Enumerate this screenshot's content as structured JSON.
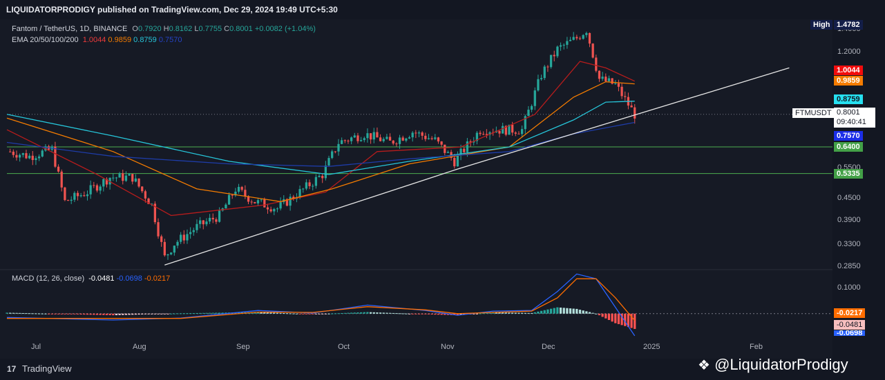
{
  "header": {
    "publisher": "LIQUIDATORPRODIGY published on TradingView.com, Dec 29, 2024 19:49 UTC+5:30"
  },
  "legend": {
    "symbol": "Fantom / TetherUS, 1D, BINANCE",
    "o_label": "O",
    "o_value": "0.7920",
    "h_label": "H",
    "h_value": "0.8162",
    "l_label": "L",
    "l_value": "0.7755",
    "c_label": "C",
    "c_value": "0.8001",
    "change": "+0.0082 (+1.04%)",
    "ema_label": "EMA 20/50/100/200",
    "ema20": "1.0044",
    "ema50": "0.9859",
    "ema100": "0.8759",
    "ema200": "0.7570",
    "macd_label": "MACD (12, 26, close)",
    "macd_hist": "-0.0481",
    "macd_line": "-0.0698",
    "macd_signal": "-0.0217"
  },
  "price_tags": {
    "high_label": "High",
    "high_value": "1.4782",
    "ema20": "1.0044",
    "ema50": "0.9859",
    "ema100": "0.8759",
    "ticker": "FTMUSDT",
    "last": "0.8001",
    "countdown": "09:40:41",
    "ema200": "0.7570",
    "level1": "0.6400",
    "level2": "0.5335",
    "macd_signal": "-0.0217",
    "macd_hist": "-0.0481",
    "macd_line": "-0.0698"
  },
  "axis": {
    "price_ticks": [
      "1.4000",
      "1.2000",
      "0.5500",
      "0.4500",
      "0.3900",
      "0.3300",
      "0.2850"
    ],
    "macd_ticks": [
      "0.1000"
    ],
    "time_labels": [
      "Jul",
      "Aug",
      "Sep",
      "Oct",
      "Nov",
      "Dec",
      "2025",
      "Feb"
    ]
  },
  "footer": {
    "brand": "TradingView",
    "logo": "17",
    "watermark": "@LiquidatorProdigy"
  },
  "colors": {
    "up": "#26a69a",
    "down": "#ef5350",
    "ema20": "#b71c1c",
    "ema50": "#f57c00",
    "ema100": "#26c6da",
    "ema200": "#1e3ca8",
    "level": "#4caf50",
    "macd": "#2962ff",
    "signal": "#ff6d00"
  },
  "chart_data": [
    {
      "type": "line",
      "title": "Fantom / TetherUS, 1D, BINANCE",
      "x_range": [
        "2024-06-17",
        "2025-02-28"
      ],
      "y_scale": "log",
      "ylim": [
        0.28,
        1.52
      ],
      "candles_approx": [
        {
          "date": "2024-06-18",
          "close": 0.62
        },
        {
          "date": "2024-06-24",
          "close": 0.6
        },
        {
          "date": "2024-07-01",
          "close": 0.63
        },
        {
          "date": "2024-07-05",
          "close": 0.44
        },
        {
          "date": "2024-07-12",
          "close": 0.47
        },
        {
          "date": "2024-07-19",
          "close": 0.52
        },
        {
          "date": "2024-07-26",
          "close": 0.52
        },
        {
          "date": "2024-08-01",
          "close": 0.43
        },
        {
          "date": "2024-08-05",
          "close": 0.3
        },
        {
          "date": "2024-08-08",
          "close": 0.33
        },
        {
          "date": "2024-08-15",
          "close": 0.37
        },
        {
          "date": "2024-08-22",
          "close": 0.4
        },
        {
          "date": "2024-08-27",
          "close": 0.48
        },
        {
          "date": "2024-09-02",
          "close": 0.44
        },
        {
          "date": "2024-09-09",
          "close": 0.42
        },
        {
          "date": "2024-09-16",
          "close": 0.47
        },
        {
          "date": "2024-09-23",
          "close": 0.53
        },
        {
          "date": "2024-09-28",
          "close": 0.66
        },
        {
          "date": "2024-10-06",
          "close": 0.7
        },
        {
          "date": "2024-10-14",
          "close": 0.66
        },
        {
          "date": "2024-10-21",
          "close": 0.71
        },
        {
          "date": "2024-10-28",
          "close": 0.67
        },
        {
          "date": "2024-11-03",
          "close": 0.58
        },
        {
          "date": "2024-11-11",
          "close": 0.72
        },
        {
          "date": "2024-11-17",
          "close": 0.72
        },
        {
          "date": "2024-11-24",
          "close": 0.72
        },
        {
          "date": "2024-11-30",
          "close": 1.05
        },
        {
          "date": "2024-12-05",
          "close": 1.25
        },
        {
          "date": "2024-12-11",
          "close": 1.35
        },
        {
          "date": "2024-12-14",
          "close": 1.43
        },
        {
          "date": "2024-12-18",
          "close": 1.02
        },
        {
          "date": "2024-12-23",
          "close": 0.98
        },
        {
          "date": "2024-12-29",
          "close": 0.8001
        }
      ],
      "series": [
        {
          "name": "EMA 20",
          "color": "#b71c1c",
          "points": [
            [
              "2024-06-17",
              0.72
            ],
            [
              "2024-07-15",
              0.53
            ],
            [
              "2024-08-07",
              0.4
            ],
            [
              "2024-09-05",
              0.43
            ],
            [
              "2024-09-24",
              0.47
            ],
            [
              "2024-10-10",
              0.62
            ],
            [
              "2024-11-05",
              0.64
            ],
            [
              "2024-11-28",
              0.8
            ],
            [
              "2024-12-12",
              1.15
            ],
            [
              "2024-12-20",
              1.1
            ],
            [
              "2024-12-29",
              1.0044
            ]
          ]
        },
        {
          "name": "EMA 50",
          "color": "#f57c00",
          "points": [
            [
              "2024-06-17",
              0.78
            ],
            [
              "2024-07-20",
              0.62
            ],
            [
              "2024-08-15",
              0.48
            ],
            [
              "2024-09-10",
              0.44
            ],
            [
              "2024-09-26",
              0.48
            ],
            [
              "2024-10-20",
              0.57
            ],
            [
              "2024-11-20",
              0.64
            ],
            [
              "2024-12-10",
              0.9
            ],
            [
              "2024-12-20",
              1.0
            ],
            [
              "2024-12-29",
              0.9859
            ]
          ]
        },
        {
          "name": "EMA 100",
          "color": "#26c6da",
          "points": [
            [
              "2024-06-17",
              0.8
            ],
            [
              "2024-07-20",
              0.69
            ],
            [
              "2024-08-25",
              0.58
            ],
            [
              "2024-09-25",
              0.53
            ],
            [
              "2024-10-20",
              0.58
            ],
            [
              "2024-11-20",
              0.64
            ],
            [
              "2024-12-10",
              0.77
            ],
            [
              "2024-12-20",
              0.87
            ],
            [
              "2024-12-29",
              0.8759
            ]
          ]
        },
        {
          "name": "EMA 200",
          "color": "#1e3ca8",
          "points": [
            [
              "2024-06-17",
              0.66
            ],
            [
              "2024-07-20",
              0.6
            ],
            [
              "2024-08-25",
              0.57
            ],
            [
              "2024-09-25",
              0.56
            ],
            [
              "2024-10-20",
              0.59
            ],
            [
              "2024-11-20",
              0.62
            ],
            [
              "2024-12-10",
              0.7
            ],
            [
              "2024-12-29",
              0.757
            ]
          ]
        }
      ],
      "trendline": [
        [
          "2024-08-05",
          0.285
        ],
        [
          "2024-11-04",
          0.55
        ],
        [
          "2025-02-15",
          1.1
        ]
      ],
      "horizontal_levels": [
        0.64,
        0.5335
      ],
      "last_price": 0.8001,
      "high": 1.4782
    },
    {
      "type": "line",
      "title": "MACD (12, 26, close)",
      "x_range": [
        "2024-06-17",
        "2025-02-28"
      ],
      "ylim": [
        -0.07,
        0.13
      ],
      "series": [
        {
          "name": "MACD",
          "color": "#2962ff",
          "points": [
            [
              "2024-06-17",
              -0.012
            ],
            [
              "2024-07-20",
              -0.02
            ],
            [
              "2024-08-10",
              -0.014
            ],
            [
              "2024-09-03",
              0.01
            ],
            [
              "2024-09-20",
              0.002
            ],
            [
              "2024-10-07",
              0.027
            ],
            [
              "2024-10-25",
              0.01
            ],
            [
              "2024-11-04",
              -0.005
            ],
            [
              "2024-11-15",
              0.008
            ],
            [
              "2024-11-27",
              0.01
            ],
            [
              "2024-12-05",
              0.07
            ],
            [
              "2024-12-11",
              0.125
            ],
            [
              "2024-12-17",
              0.11
            ],
            [
              "2024-12-23",
              0.02
            ],
            [
              "2024-12-29",
              -0.0698
            ]
          ]
        },
        {
          "name": "Signal",
          "color": "#ff6d00",
          "points": [
            [
              "2024-06-17",
              -0.015
            ],
            [
              "2024-07-20",
              -0.015
            ],
            [
              "2024-08-10",
              -0.015
            ],
            [
              "2024-09-03",
              0.005
            ],
            [
              "2024-09-20",
              0.004
            ],
            [
              "2024-10-07",
              0.022
            ],
            [
              "2024-10-25",
              0.012
            ],
            [
              "2024-11-04",
              0.0
            ],
            [
              "2024-11-15",
              0.004
            ],
            [
              "2024-11-27",
              0.008
            ],
            [
              "2024-12-05",
              0.05
            ],
            [
              "2024-12-11",
              0.11
            ],
            [
              "2024-12-17",
              0.11
            ],
            [
              "2024-12-23",
              0.05
            ],
            [
              "2024-12-29",
              -0.0217
            ]
          ]
        }
      ],
      "histogram_last": -0.0481
    }
  ]
}
